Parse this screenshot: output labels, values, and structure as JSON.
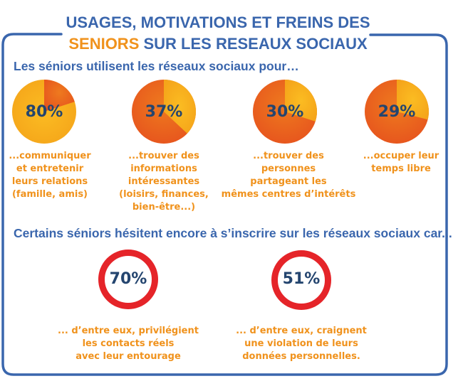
{
  "title": {
    "line1": "USAGES, MOTIVATIONS ET FREINS DES",
    "line2_highlight": "SENIORS",
    "line2_rest": " SUR LES RESEAUX SOCIAUX"
  },
  "sections": {
    "usage_heading": "Les séniors utilisent les réseaux sociaux pour…",
    "freins_heading": "Certains séniors hésitent encore à s’inscrire sur les réseaux sociaux car..."
  },
  "colors": {
    "frame": "#3a66ad",
    "title_blue": "#3a66ad",
    "highlight_orange": "#f0921c",
    "pie_yellow": "#f8ac1c",
    "pie_orange": "#ea5d1e",
    "ring_red": "#e52429",
    "pct_text": "#24456f"
  },
  "chart_data": [
    {
      "type": "pie",
      "title": "Les séniors utilisent les réseaux sociaux pour…",
      "items": [
        {
          "label": "80%",
          "value": 80,
          "caption": [
            "...communiquer",
            "et entretenir",
            "leurs relations",
            "(famille, amis)"
          ],
          "highlight_color": "yellow"
        },
        {
          "label": "37%",
          "value": 37,
          "caption": [
            "...trouver des",
            "informations",
            "intéressantes",
            "(loisirs, finances,",
            "bien-être...)"
          ],
          "highlight_color": "yellow"
        },
        {
          "label": "30%",
          "value": 30,
          "caption": [
            "...trouver des",
            "personnes",
            "partageant les",
            "mêmes centres d’intérêts"
          ],
          "highlight_color": "yellow"
        },
        {
          "label": "29%",
          "value": 29,
          "caption": [
            "...occuper leur",
            "temps libre"
          ],
          "highlight_color": "yellow"
        }
      ]
    },
    {
      "type": "ring",
      "title": "Certains séniors hésitent encore à s’inscrire sur les réseaux sociaux car...",
      "items": [
        {
          "label": "70%",
          "value": 70,
          "caption": [
            "... d’entre eux, privilégient",
            "les contacts réels",
            "avec leur entourage"
          ]
        },
        {
          "label": "51%",
          "value": 51,
          "caption": [
            "... d’entre eux, craignent",
            "une violation de leurs",
            "données personnelles."
          ]
        }
      ]
    }
  ]
}
